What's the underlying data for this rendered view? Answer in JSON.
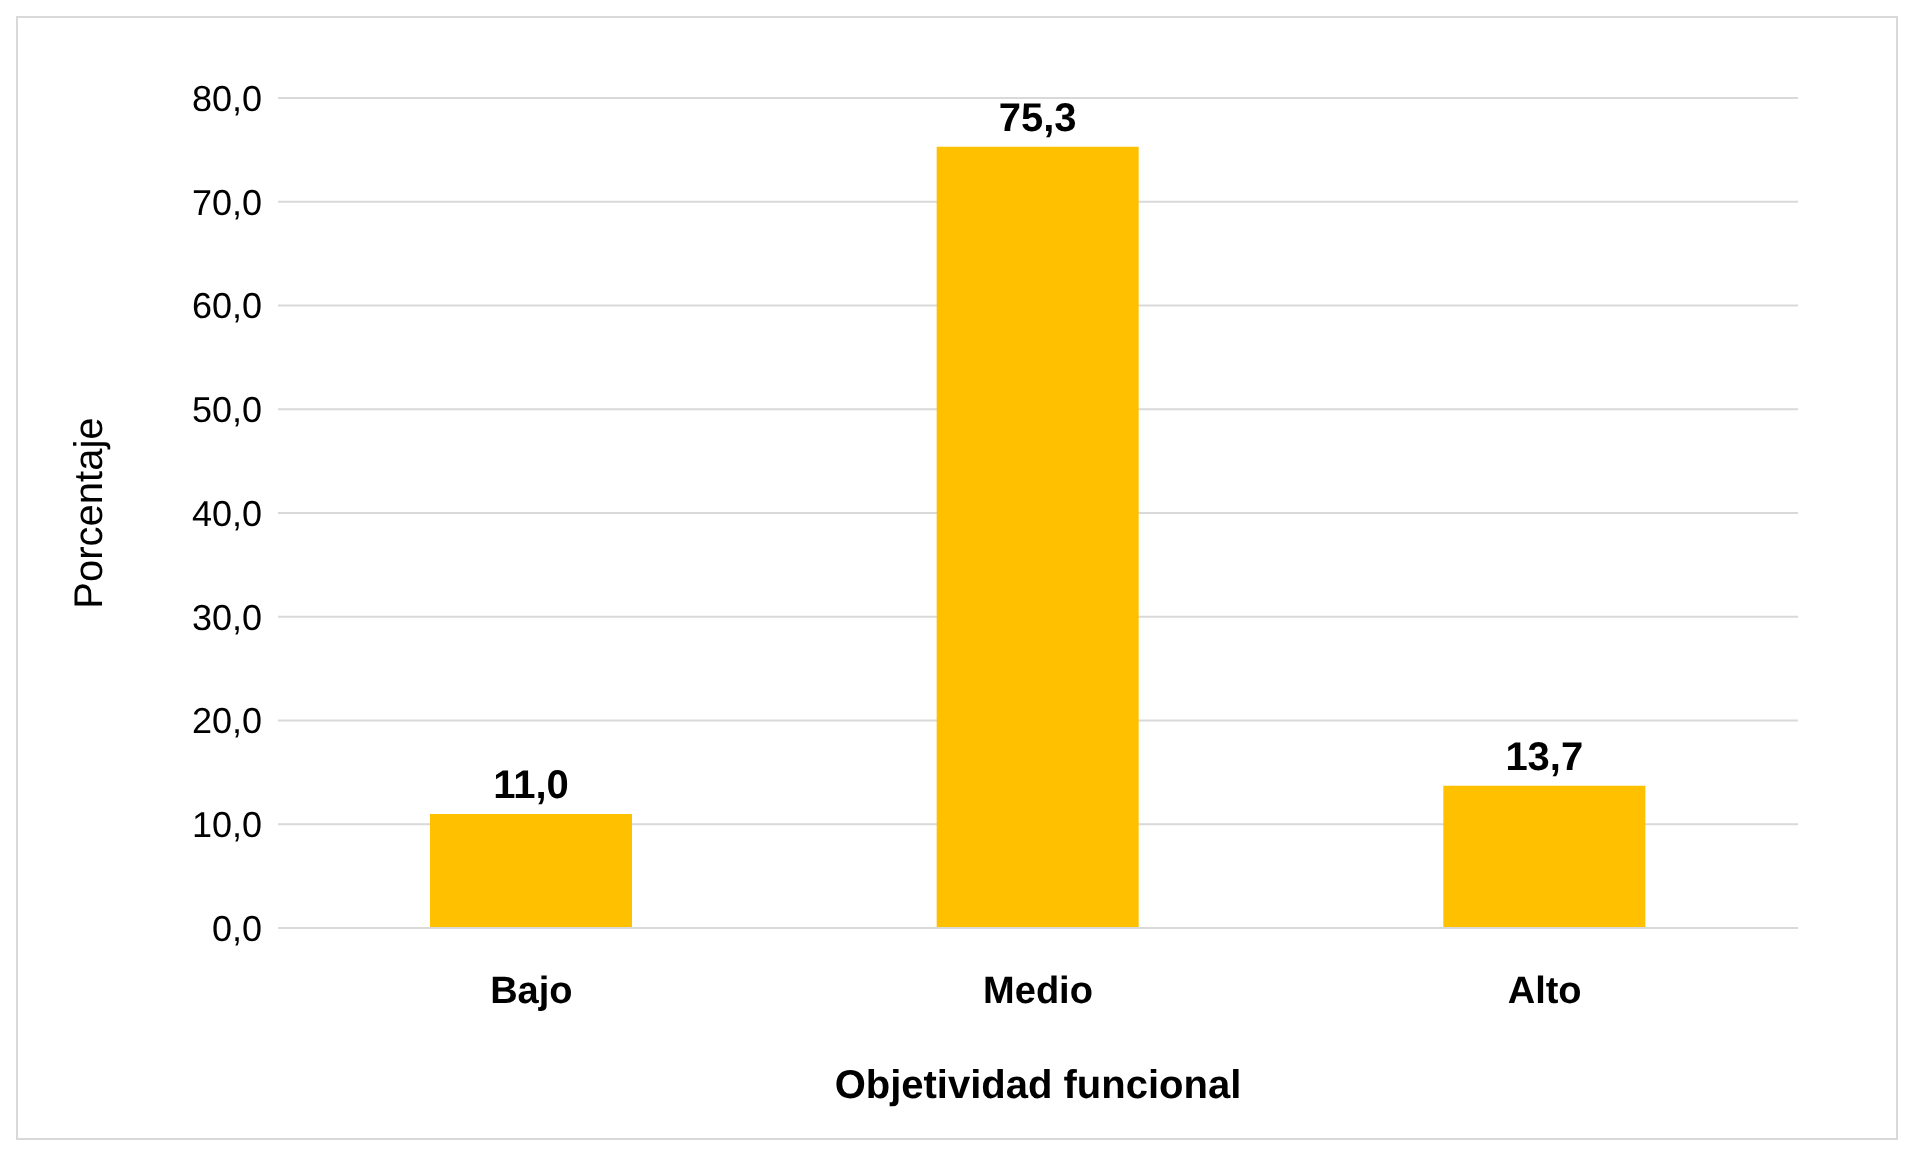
{
  "chart_data": {
    "type": "bar",
    "xlabel": "Objetividad funcional",
    "ylabel": "Porcentaje",
    "categories": [
      "Bajo",
      "Medio",
      "Alto"
    ],
    "values": [
      11.0,
      75.3,
      13.7
    ],
    "value_labels": [
      "11,0",
      "75,3",
      "13,7"
    ],
    "color": "#ffc000",
    "ylim": [
      0,
      80
    ],
    "yticks": [
      {
        "value": 0,
        "label": "0,0"
      },
      {
        "value": 10,
        "label": "10,0"
      },
      {
        "value": 20,
        "label": "20,0"
      },
      {
        "value": 30,
        "label": "30,0"
      },
      {
        "value": 40,
        "label": "40,0"
      },
      {
        "value": 50,
        "label": "50,0"
      },
      {
        "value": 60,
        "label": "60,0"
      },
      {
        "value": 70,
        "label": "70,0"
      },
      {
        "value": 80,
        "label": "80,0"
      }
    ],
    "grid": "y"
  }
}
